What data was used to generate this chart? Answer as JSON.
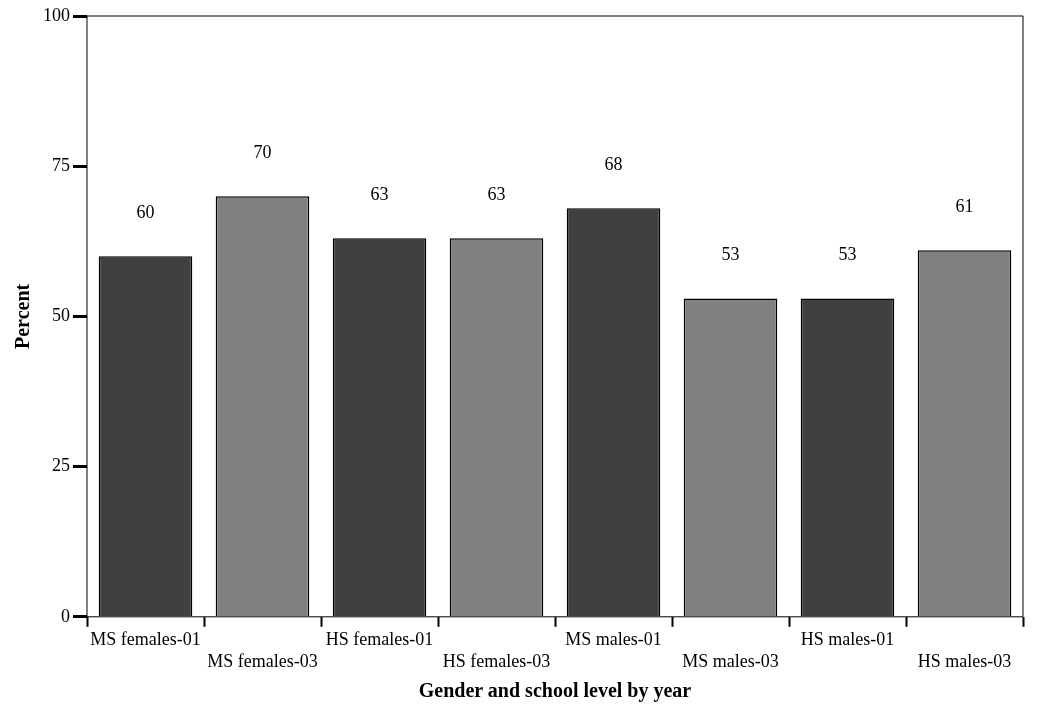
{
  "chart_data": {
    "type": "bar",
    "xlabel": "Gender and school level by year",
    "ylabel": "Percent",
    "categories": [
      "MS females-01",
      "MS females-03",
      "HS females-01",
      "HS females-03",
      "MS males-01",
      "MS males-03",
      "HS males-01",
      "HS males-03"
    ],
    "values": [
      60,
      70,
      63,
      63,
      68,
      53,
      53,
      61
    ],
    "colors": [
      "#404040",
      "#808080",
      "#404040",
      "#808080",
      "#404040",
      "#808080",
      "#404040",
      "#808080"
    ],
    "ylim": [
      0,
      100
    ],
    "yticks": [
      0,
      25,
      50,
      75,
      100
    ],
    "grid": false,
    "legend": false,
    "data_labels": true
  }
}
